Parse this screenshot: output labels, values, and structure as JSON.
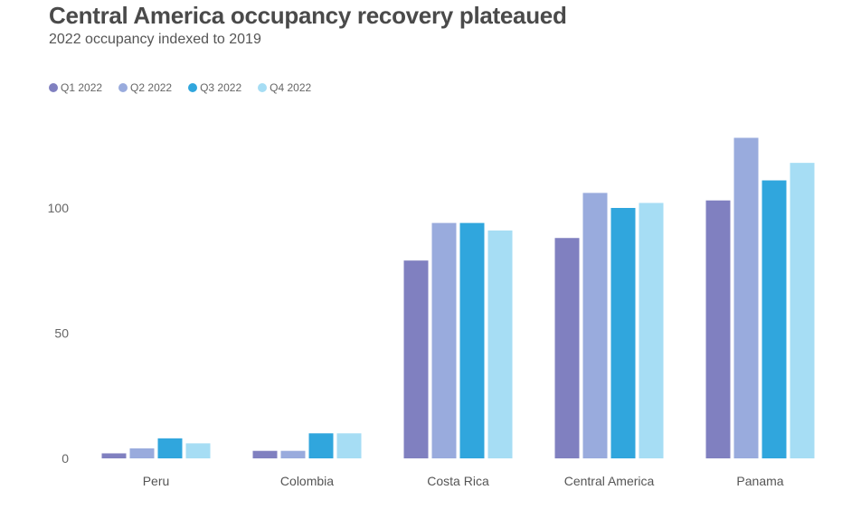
{
  "header": {
    "title": "Central America occupancy recovery plateaued",
    "subtitle": "2022 occupancy indexed to 2019"
  },
  "chart_data": {
    "type": "bar",
    "title": "Central America occupancy recovery plateaued",
    "subtitle": "2022 occupancy indexed to 2019",
    "xlabel": "",
    "ylabel": "",
    "categories": [
      "Peru",
      "Colombia",
      "Costa Rica",
      "Central America",
      "Panama"
    ],
    "series": [
      {
        "name": "Q1 2022",
        "color": "#8080c0",
        "values": [
          2,
          3,
          79,
          88,
          103
        ]
      },
      {
        "name": "Q2 2022",
        "color": "#99abdd",
        "values": [
          4,
          3,
          94,
          106,
          128
        ]
      },
      {
        "name": "Q3 2022",
        "color": "#30a6dd",
        "values": [
          8,
          10,
          94,
          100,
          111
        ]
      },
      {
        "name": "Q4 2022",
        "color": "#a6ddf4",
        "values": [
          6,
          10,
          91,
          102,
          118
        ]
      }
    ],
    "yticks": [
      0,
      50,
      100
    ],
    "ylim": [
      0,
      130
    ],
    "grid": false,
    "legend": "top-left"
  }
}
